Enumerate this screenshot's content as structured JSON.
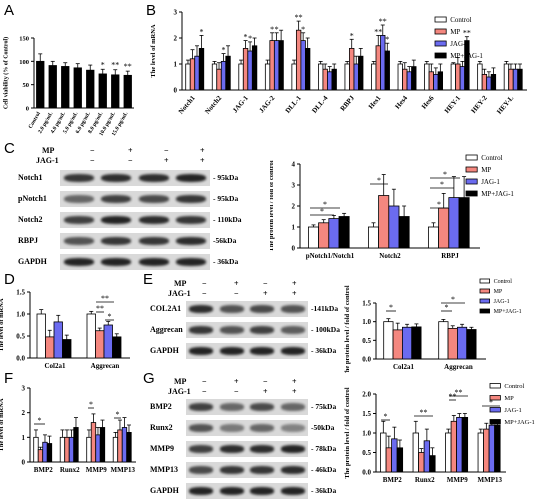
{
  "panel_labels": {
    "a": "A",
    "b": "B",
    "c": "C",
    "d": "D",
    "e": "E",
    "f": "F",
    "g": "G"
  },
  "panel_A": {
    "ylabel": "Cell viability (% of Control)",
    "yticks": [
      "0",
      "50",
      "100",
      "150"
    ],
    "categories": [
      "Control",
      "2.0 μg/mL",
      "4.0 μg/mL",
      "5.0 μg/mL",
      "6.0 μg/mL",
      "8.0 μg/mL",
      "10.0 μg/mL",
      "15.0 μg/mL"
    ],
    "values": [
      100,
      91,
      89,
      86,
      81,
      73,
      71,
      70
    ],
    "errors": [
      16,
      9,
      8,
      9,
      11,
      10,
      11,
      9
    ],
    "stars": [
      "",
      "",
      "",
      "",
      "",
      "*",
      "**",
      "**"
    ]
  },
  "panel_B": {
    "ylabel": "The level of mRNA",
    "yticks": [
      "0",
      "1",
      "2",
      "3"
    ],
    "genes": [
      "Notch1",
      "Notch2",
      "JAG-1",
      "JAG-2",
      "DLL-1",
      "DLL-4",
      "RBPJ",
      "Hes1",
      "Hes4",
      "Hes6",
      "HEY-1",
      "HEY-2",
      "HEY-L"
    ],
    "legend": [
      "Control",
      "MP",
      "JAG-1",
      "MP+JAG-1"
    ]
  },
  "panel_C": {
    "rows": [
      "Notch1",
      "pNotch1",
      "Notch2",
      "RBPJ",
      "GAPDH"
    ],
    "kda": [
      "- 95kDa",
      "- 95kDa",
      "- 110kDa",
      "-56kDa",
      "- 36kDa"
    ],
    "mp_label": "MP",
    "jag_label": "JAG-1",
    "mp_signs": [
      "−",
      "+",
      "−",
      "+"
    ],
    "jag_signs": [
      "−",
      "−",
      "+",
      "+"
    ],
    "chart_ylabel": "The protein level / fold of control",
    "yticks": [
      "0",
      "1",
      "2",
      "3",
      "4"
    ],
    "groups": [
      "pNotch1/Notch1",
      "Notch2",
      "RBPJ"
    ],
    "legend": [
      "Control",
      "MP",
      "JAG-1",
      "MP+JAG-1"
    ]
  },
  "panel_D": {
    "ylabel": "The level of mRNA",
    "yticks": [
      "0.0",
      "0.5",
      "1.0",
      "1.5"
    ],
    "groups": [
      "Col2a1",
      "Aggrecan"
    ]
  },
  "panel_E": {
    "rows": [
      "COL2A1",
      "Aggrecan",
      "GAPDH"
    ],
    "kda": [
      "-141kDa",
      "- 100kDa",
      "- 36kDa"
    ],
    "mp_label": "MP",
    "jag_label": "JAG-1",
    "mp_signs": [
      "−",
      "+",
      "−",
      "+"
    ],
    "jag_signs": [
      "−",
      "−",
      "+",
      "+"
    ],
    "chart_ylabel": "The protein level / fold of control",
    "yticks": [
      "0.0",
      "0.5",
      "1.0",
      "1.5"
    ],
    "groups": [
      "Col2a1",
      "Aggrecan"
    ],
    "legend": [
      "Control",
      "MP",
      "JAG-1",
      "MP+JAG-1"
    ]
  },
  "panel_F": {
    "ylabel": "The level of mRNA",
    "yticks": [
      "0",
      "1",
      "2",
      "3"
    ],
    "groups": [
      "BMP2",
      "Runx2",
      "MMP9",
      "MMP13"
    ]
  },
  "panel_G": {
    "rows": [
      "BMP2",
      "Runx2",
      "MMP9",
      "MMP13",
      "GAPDH"
    ],
    "kda": [
      "- 75kDa",
      "-50kDa",
      "- 78kDa",
      "- 46kDa",
      "- 36kDa"
    ],
    "mp_label": "MP",
    "jag_label": "JAG-1",
    "mp_signs": [
      "−",
      "+",
      "−",
      "+"
    ],
    "jag_signs": [
      "−",
      "−",
      "+",
      "+"
    ],
    "chart_ylabel": "The protein level / fold of control",
    "yticks": [
      "0.0",
      "0.5",
      "1.0",
      "1.5",
      "2.0"
    ],
    "groups": [
      "BMP2",
      "Runx2",
      "MMP9",
      "MMP13"
    ],
    "legend": [
      "Control",
      "MP",
      "JAG-1",
      "MP+JAG-1"
    ]
  },
  "colors": {
    "control": "#ffffff",
    "mp": "#f4877f",
    "jag": "#6b6bf0",
    "mpjag": "#000000"
  },
  "chart_data": [
    {
      "type": "bar",
      "title": "",
      "ylabel": "Cell viability (% of Control)",
      "categories": [
        "Control",
        "2.0 μg/mL",
        "4.0 μg/mL",
        "5.0 μg/mL",
        "6.0 μg/mL",
        "8.0 μg/mL",
        "10.0 μg/mL",
        "15.0 μg/mL"
      ],
      "values": [
        100,
        91,
        89,
        86,
        81,
        73,
        71,
        70
      ],
      "ylim": [
        0,
        150
      ]
    },
    {
      "type": "bar",
      "ylabel": "The level of mRNA",
      "categories": [
        "Notch1",
        "Notch2",
        "JAG-1",
        "JAG-2",
        "DLL-1",
        "DLL-4",
        "RBPJ",
        "Hes1",
        "Hes4",
        "Hes6",
        "HEY-1",
        "HEY-2",
        "HEY-L"
      ],
      "series": [
        {
          "name": "Control",
          "values": [
            1,
            1,
            1,
            1,
            1,
            1,
            1,
            1,
            1,
            1,
            1,
            1,
            1
          ]
        },
        {
          "name": "MP",
          "values": [
            1.2,
            0.8,
            1.6,
            1.9,
            2.3,
            0.8,
            1.6,
            1.7,
            0.8,
            0.7,
            1.0,
            0.6,
            0.8
          ]
        },
        {
          "name": "JAG-1",
          "values": [
            1.3,
            1.1,
            1.5,
            1.9,
            1.9,
            0.7,
            1.0,
            2.1,
            0.7,
            0.6,
            0.9,
            0.5,
            0.8
          ]
        },
        {
          "name": "MP+JAG-1",
          "values": [
            1.6,
            1.3,
            1.7,
            1.9,
            1.6,
            0.8,
            1.3,
            1.5,
            0.9,
            0.7,
            1.9,
            0.6,
            0.8
          ]
        }
      ],
      "ylim": [
        0,
        3
      ]
    },
    {
      "type": "bar",
      "ylabel": "The protein level / fold of control",
      "categories": [
        "pNotch1/Notch1",
        "Notch2",
        "RBPJ"
      ],
      "series": [
        {
          "name": "Control",
          "values": [
            1.0,
            1.0,
            1.0
          ]
        },
        {
          "name": "MP",
          "values": [
            1.2,
            2.5,
            1.9
          ]
        },
        {
          "name": "JAG-1",
          "values": [
            1.4,
            2.0,
            2.4
          ]
        },
        {
          "name": "MP+JAG-1",
          "values": [
            1.5,
            1.5,
            2.4
          ]
        }
      ],
      "ylim": [
        0,
        4
      ]
    },
    {
      "type": "bar",
      "ylabel": "The level of mRNA",
      "categories": [
        "Col2a1",
        "Aggrecan"
      ],
      "series": [
        {
          "name": "Control",
          "values": [
            1.0,
            1.0
          ]
        },
        {
          "name": "MP",
          "values": [
            0.48,
            0.62
          ]
        },
        {
          "name": "JAG-1",
          "values": [
            0.82,
            0.75
          ]
        },
        {
          "name": "MP+JAG-1",
          "values": [
            0.42,
            0.48
          ]
        }
      ],
      "ylim": [
        0,
        1.5
      ]
    },
    {
      "type": "bar",
      "ylabel": "The protein level / fold of control",
      "categories": [
        "Col2a1",
        "Aggrecan"
      ],
      "series": [
        {
          "name": "Control",
          "values": [
            1.0,
            1.0
          ]
        },
        {
          "name": "MP",
          "values": [
            0.78,
            0.82
          ]
        },
        {
          "name": "JAG-1",
          "values": [
            0.85,
            0.85
          ]
        },
        {
          "name": "MP+JAG-1",
          "values": [
            0.86,
            0.79
          ]
        }
      ],
      "ylim": [
        0,
        1.5
      ]
    },
    {
      "type": "bar",
      "ylabel": "The level of mRNA",
      "categories": [
        "BMP2",
        "Runx2",
        "MMP9",
        "MMP13"
      ],
      "series": [
        {
          "name": "Control",
          "values": [
            1.0,
            1.0,
            1.0,
            1.0
          ]
        },
        {
          "name": "MP",
          "values": [
            0.5,
            1.0,
            1.6,
            1.3
          ]
        },
        {
          "name": "JAG-1",
          "values": [
            0.8,
            1.0,
            1.1,
            1.4
          ]
        },
        {
          "name": "MP+JAG-1",
          "values": [
            0.75,
            1.4,
            1.4,
            1.2
          ]
        }
      ],
      "ylim": [
        0,
        3
      ]
    },
    {
      "type": "bar",
      "ylabel": "The protein level / fold of control",
      "categories": [
        "BMP2",
        "Runx2",
        "MMP9",
        "MMP13"
      ],
      "series": [
        {
          "name": "Control",
          "values": [
            1.0,
            1.0,
            1.0,
            1.0
          ]
        },
        {
          "name": "MP",
          "values": [
            0.62,
            0.5,
            1.3,
            1.1
          ]
        },
        {
          "name": "JAG-1",
          "values": [
            0.85,
            0.8,
            1.4,
            1.2
          ]
        },
        {
          "name": "MP+JAG-1",
          "values": [
            0.62,
            0.42,
            1.4,
            1.2
          ]
        }
      ],
      "ylim": [
        0,
        2
      ]
    }
  ]
}
